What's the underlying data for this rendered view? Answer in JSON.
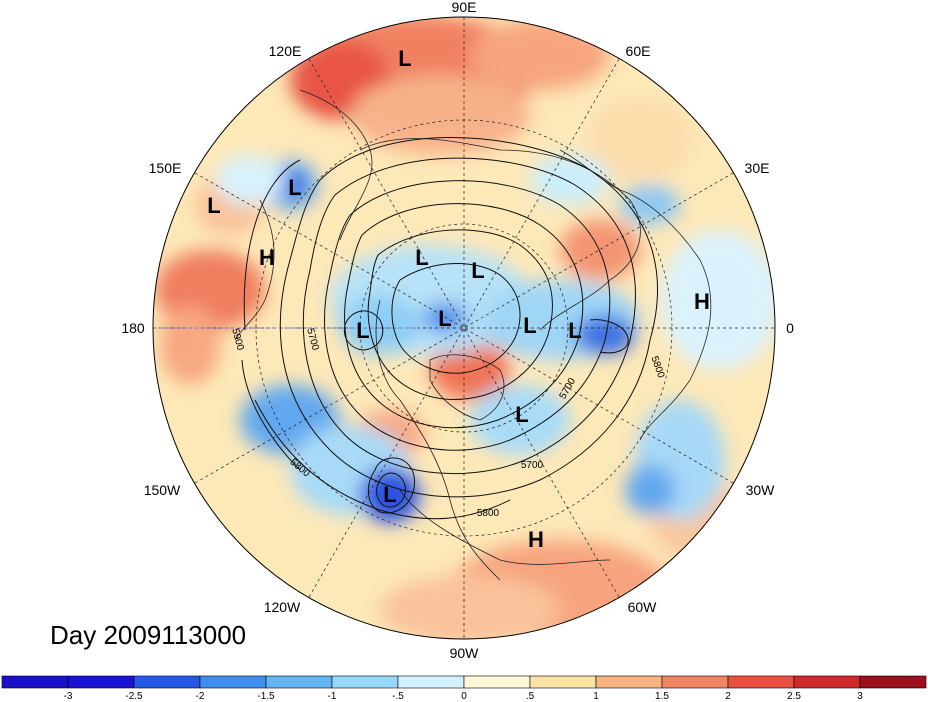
{
  "title": "Day 2009113000",
  "longitude_labels": {
    "e90": "90E",
    "e120": "120E",
    "e60": "60E",
    "e150": "150E",
    "e30": "30E",
    "e180": "180",
    "e0": "0",
    "w150": "150W",
    "w30": "30W",
    "w120": "120W",
    "w60": "60W",
    "w90": "90W"
  },
  "pressure_markers": [
    "L",
    "L",
    "L",
    "H",
    "L",
    "L",
    "L",
    "L",
    "L",
    "L",
    "H",
    "L",
    "L",
    "H"
  ],
  "contour_labels": [
    "5900",
    "5700",
    "5800",
    "5700",
    "5800",
    "5700",
    "5800"
  ],
  "colorbar": {
    "ticks": [
      "-3",
      "-2.5",
      "-2",
      "-1.5",
      "-1",
      "-.5",
      "0",
      ".5",
      "1",
      "1.5",
      "2",
      "2.5",
      "3"
    ],
    "colors": [
      "#1c12d4",
      "#2658e6",
      "#3e8ff0",
      "#62b4f4",
      "#96d8f9",
      "#d3f2fd",
      "#fcf8d8",
      "#fbe3a5",
      "#f8b383",
      "#f28563",
      "#e9503f",
      "#cf2a2a",
      "#a5121f"
    ]
  },
  "colors": {
    "ocean": "#fde2a9",
    "warm": "#f19070",
    "cool": "#7cc2f2",
    "deep_blue": "#2646e0"
  }
}
